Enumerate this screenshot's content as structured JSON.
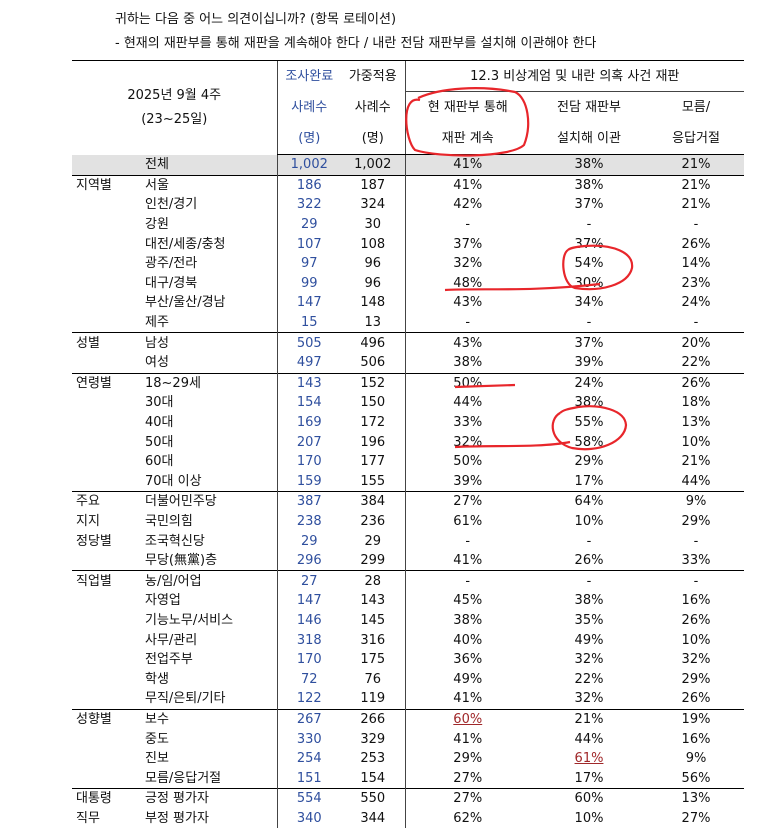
{
  "intro": {
    "line1": "귀하는 다음 중 어느 의견이십니까? (항목 로테이션)",
    "line2": "- 현재의 재판부를 통해 재판을 계속해야 한다 / 내란 전담 재판부를 설치해 이관해야 한다"
  },
  "header": {
    "date_line1": "2025년 9월 4주",
    "date_line2": "(23~25일)",
    "n1_line1": "조사완료",
    "n1_line2": "사례수",
    "n1_line3": "(명)",
    "n2_line1": "가중적용",
    "n2_line2": "사례수",
    "n2_line3": "(명)",
    "question": "12.3 비상계엄 및 내란 의혹 사건 재판",
    "opt_a_line1": "현 재판부 통해",
    "opt_a_line2": "재판 계속",
    "opt_b_line1": "전담 재판부",
    "opt_b_line2": "설치해 이관",
    "opt_c_line1": "모름/",
    "opt_c_line2": "응답거절"
  },
  "annotation_color": "#e8262b",
  "highlight_text_color": "#a0282a",
  "n1_color": "#2f4f9e",
  "rows": [
    {
      "cat": "",
      "sub": "전체",
      "n1": "1,002",
      "n2": "1,002",
      "a": "41%",
      "b": "38%",
      "c": "21%",
      "total": true
    },
    {
      "cat": "지역별",
      "sub": "서울",
      "n1": "186",
      "n2": "187",
      "a": "41%",
      "b": "38%",
      "c": "21%",
      "top": true
    },
    {
      "cat": "",
      "sub": "인천/경기",
      "n1": "322",
      "n2": "324",
      "a": "42%",
      "b": "37%",
      "c": "21%"
    },
    {
      "cat": "",
      "sub": "강원",
      "n1": "29",
      "n2": "30",
      "a": "-",
      "b": "-",
      "c": "-"
    },
    {
      "cat": "",
      "sub": "대전/세종/충청",
      "n1": "107",
      "n2": "108",
      "a": "37%",
      "b": "37%",
      "c": "26%"
    },
    {
      "cat": "",
      "sub": "광주/전라",
      "n1": "97",
      "n2": "96",
      "a": "32%",
      "b": "54%",
      "c": "14%"
    },
    {
      "cat": "",
      "sub": "대구/경북",
      "n1": "99",
      "n2": "96",
      "a": "48%",
      "b": "30%",
      "c": "23%"
    },
    {
      "cat": "",
      "sub": "부산/울산/경남",
      "n1": "147",
      "n2": "148",
      "a": "43%",
      "b": "34%",
      "c": "24%"
    },
    {
      "cat": "",
      "sub": "제주",
      "n1": "15",
      "n2": "13",
      "a": "-",
      "b": "-",
      "c": "-"
    },
    {
      "cat": "성별",
      "sub": "남성",
      "n1": "505",
      "n2": "496",
      "a": "43%",
      "b": "37%",
      "c": "20%",
      "top": true
    },
    {
      "cat": "",
      "sub": "여성",
      "n1": "497",
      "n2": "506",
      "a": "38%",
      "b": "39%",
      "c": "22%"
    },
    {
      "cat": "연령별",
      "sub": "18~29세",
      "n1": "143",
      "n2": "152",
      "a": "50%",
      "b": "24%",
      "c": "26%",
      "top": true
    },
    {
      "cat": "",
      "sub": "30대",
      "n1": "154",
      "n2": "150",
      "a": "44%",
      "b": "38%",
      "c": "18%"
    },
    {
      "cat": "",
      "sub": "40대",
      "n1": "169",
      "n2": "172",
      "a": "33%",
      "b": "55%",
      "c": "13%"
    },
    {
      "cat": "",
      "sub": "50대",
      "n1": "207",
      "n2": "196",
      "a": "32%",
      "b": "58%",
      "c": "10%"
    },
    {
      "cat": "",
      "sub": "60대",
      "n1": "170",
      "n2": "177",
      "a": "50%",
      "b": "29%",
      "c": "21%"
    },
    {
      "cat": "",
      "sub": "70대 이상",
      "n1": "159",
      "n2": "155",
      "a": "39%",
      "b": "17%",
      "c": "44%"
    },
    {
      "cat": "주요",
      "sub": "더불어민주당",
      "n1": "387",
      "n2": "384",
      "a": "27%",
      "b": "64%",
      "c": "9%",
      "top": true
    },
    {
      "cat": "지지",
      "sub": "국민의힘",
      "n1": "238",
      "n2": "236",
      "a": "61%",
      "b": "10%",
      "c": "29%"
    },
    {
      "cat": "정당별",
      "sub": "조국혁신당",
      "n1": "29",
      "n2": "29",
      "a": "-",
      "b": "-",
      "c": "-"
    },
    {
      "cat": "",
      "sub": "무당(無黨)층",
      "n1": "296",
      "n2": "299",
      "a": "41%",
      "b": "26%",
      "c": "33%"
    },
    {
      "cat": "직업별",
      "sub": "농/임/어업",
      "n1": "27",
      "n2": "28",
      "a": "-",
      "b": "-",
      "c": "-",
      "top": true
    },
    {
      "cat": "",
      "sub": "자영업",
      "n1": "147",
      "n2": "143",
      "a": "45%",
      "b": "38%",
      "c": "16%"
    },
    {
      "cat": "",
      "sub": "기능노무/서비스",
      "n1": "146",
      "n2": "145",
      "a": "38%",
      "b": "35%",
      "c": "26%"
    },
    {
      "cat": "",
      "sub": "사무/관리",
      "n1": "318",
      "n2": "316",
      "a": "40%",
      "b": "49%",
      "c": "10%"
    },
    {
      "cat": "",
      "sub": "전업주부",
      "n1": "170",
      "n2": "175",
      "a": "36%",
      "b": "32%",
      "c": "32%"
    },
    {
      "cat": "",
      "sub": "학생",
      "n1": "72",
      "n2": "76",
      "a": "49%",
      "b": "22%",
      "c": "29%"
    },
    {
      "cat": "",
      "sub": "무직/은퇴/기타",
      "n1": "122",
      "n2": "119",
      "a": "41%",
      "b": "32%",
      "c": "26%"
    },
    {
      "cat": "성향별",
      "sub": "보수",
      "n1": "267",
      "n2": "266",
      "a": "60%",
      "b": "21%",
      "c": "19%",
      "top": true,
      "a_red": true
    },
    {
      "cat": "",
      "sub": "중도",
      "n1": "330",
      "n2": "329",
      "a": "41%",
      "b": "44%",
      "c": "16%"
    },
    {
      "cat": "",
      "sub": "진보",
      "n1": "254",
      "n2": "253",
      "a": "29%",
      "b": "61%",
      "c": "9%",
      "b_red": true
    },
    {
      "cat": "",
      "sub": "모름/응답거절",
      "n1": "151",
      "n2": "154",
      "a": "27%",
      "b": "17%",
      "c": "56%"
    },
    {
      "cat": "대통령",
      "sub": "긍정 평가자",
      "n1": "554",
      "n2": "550",
      "a": "27%",
      "b": "60%",
      "c": "13%",
      "top": true
    },
    {
      "cat": "직무",
      "sub": "부정 평가자",
      "n1": "340",
      "n2": "344",
      "a": "62%",
      "b": "10%",
      "c": "27%"
    }
  ]
}
